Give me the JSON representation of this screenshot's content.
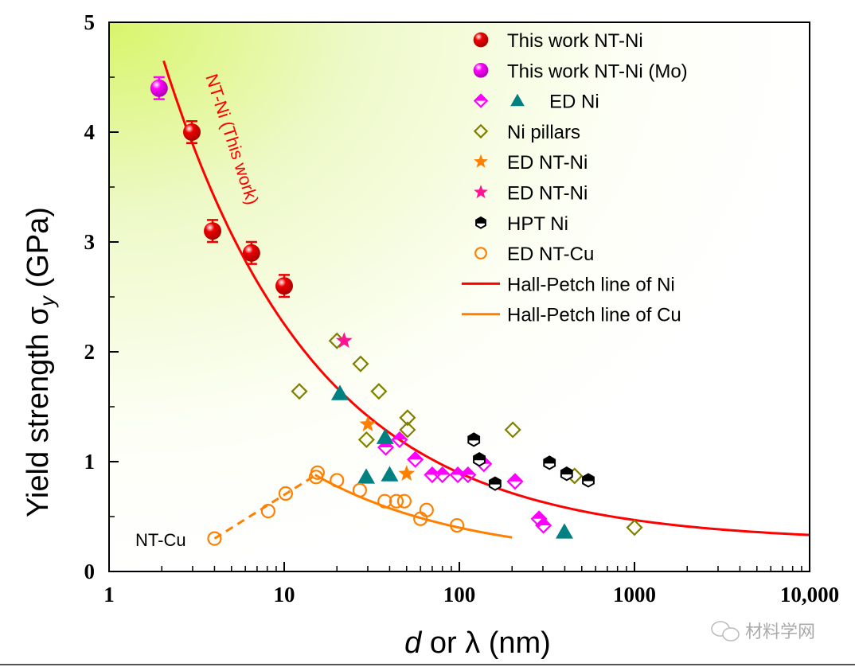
{
  "chart_data": {
    "type": "scatter",
    "xlabel": "d or λ (nm)",
    "xlabel_italic_part": "d",
    "xlabel_rest": " or λ (nm)",
    "ylabel": "Yield strength σy (GPa)",
    "ylabel_main": "Yield strength σ",
    "ylabel_sub": "y",
    "ylabel_unit": " (GPa)",
    "xscale": "log",
    "xlim": [
      1,
      10000
    ],
    "ylim": [
      0,
      5
    ],
    "xticks": [
      {
        "v": 1,
        "label": "1"
      },
      {
        "v": 10,
        "label": "10"
      },
      {
        "v": 100,
        "label": "100"
      },
      {
        "v": 1000,
        "label": "1000"
      },
      {
        "v": 10000,
        "label": "10,000"
      }
    ],
    "yticks": [
      {
        "v": 0,
        "label": "0"
      },
      {
        "v": 1,
        "label": "1"
      },
      {
        "v": 2,
        "label": "2"
      },
      {
        "v": 3,
        "label": "3"
      },
      {
        "v": 4,
        "label": "4"
      },
      {
        "v": 5,
        "label": "5"
      }
    ],
    "grid": false,
    "legend_position": "top-right",
    "background": "yellow-green gradient from top-left",
    "series": [
      {
        "name": "This work NT-Ni",
        "marker": "ball",
        "color": "#ee0000",
        "error": 0.1,
        "points": [
          [
            2.97,
            4.0
          ],
          [
            3.9,
            3.1
          ],
          [
            6.5,
            2.9
          ],
          [
            10,
            2.6
          ]
        ]
      },
      {
        "name": "This work NT-Ni (Mo)",
        "marker": "ball",
        "color": "#ff00ff",
        "error": 0.1,
        "points": [
          [
            1.93,
            4.4
          ]
        ]
      },
      {
        "name": "ED Ni",
        "marker": "halfdiamond",
        "color": "#ff00ff",
        "points": [
          [
            38,
            1.13
          ],
          [
            45.6,
            1.2
          ],
          [
            56,
            1.02
          ],
          [
            70,
            0.88
          ],
          [
            80,
            0.88
          ],
          [
            98,
            0.88
          ],
          [
            112,
            0.88
          ],
          [
            138,
            0.98
          ],
          [
            208,
            0.82
          ],
          [
            285,
            0.48
          ],
          [
            302,
            0.42
          ]
        ]
      },
      {
        "name": "ED Ni",
        "marker": "triangle",
        "color": "#008080",
        "points": [
          [
            20.8,
            1.62
          ],
          [
            37.7,
            1.22
          ],
          [
            29.4,
            0.86
          ],
          [
            40,
            0.88
          ],
          [
            398,
            0.36
          ]
        ]
      },
      {
        "name": "Ni pillars",
        "marker": "diamond",
        "color": "#808000",
        "points": [
          [
            12.2,
            1.64
          ],
          [
            20,
            2.1
          ],
          [
            27.3,
            1.89
          ],
          [
            34.7,
            1.64
          ],
          [
            50.6,
            1.4
          ],
          [
            50.6,
            1.29
          ],
          [
            29.5,
            1.2
          ],
          [
            202,
            1.29
          ],
          [
            455,
            0.87
          ],
          [
            1000,
            0.4
          ]
        ]
      },
      {
        "name": "ED NT-Ni",
        "marker": "star",
        "color": "#ff8000",
        "points": [
          [
            30,
            1.34
          ],
          [
            50,
            0.89
          ]
        ]
      },
      {
        "name": "ED NT-Ni",
        "marker": "star",
        "color": "#ff1493",
        "points": [
          [
            22,
            2.1
          ]
        ]
      },
      {
        "name": "HPT Ni",
        "marker": "hexagon",
        "color": "#000000",
        "points": [
          [
            121,
            1.2
          ],
          [
            130,
            1.02
          ],
          [
            160,
            0.8
          ],
          [
            327,
            0.99
          ],
          [
            410,
            0.89
          ],
          [
            545,
            0.83
          ]
        ]
      },
      {
        "name": "ED NT-Cu",
        "marker": "circle",
        "color": "#ff8000",
        "points": [
          [
            4.0,
            0.3
          ],
          [
            8.1,
            0.55
          ],
          [
            10.2,
            0.71
          ],
          [
            15.2,
            0.86
          ],
          [
            15.5,
            0.9
          ],
          [
            20,
            0.83
          ],
          [
            27,
            0.74
          ],
          [
            37.5,
            0.64
          ],
          [
            43.7,
            0.64
          ],
          [
            48.5,
            0.64
          ],
          [
            65,
            0.56
          ],
          [
            60,
            0.48
          ],
          [
            97,
            0.42
          ]
        ]
      }
    ],
    "lines": [
      {
        "name": "Hall-Petch line of Ni",
        "color": "#ff0000",
        "style": "solid",
        "sigma0": 0.27,
        "k": 6.27,
        "xrange": [
          2.05,
          10000
        ]
      },
      {
        "name": "Hall-Petch line of Cu",
        "color": "#ff8000",
        "style": "solid",
        "sigma0": 0.095,
        "k": 3.04,
        "xrange": [
          15,
          200
        ]
      },
      {
        "name": "",
        "color": "#ff8000",
        "style": "dashed",
        "points": [
          [
            4.0,
            0.3
          ],
          [
            15.2,
            0.88
          ]
        ]
      }
    ],
    "legend": [
      {
        "label": "This work NT-Ni",
        "markers": [
          {
            "marker": "ball",
            "color": "#ee0000"
          }
        ]
      },
      {
        "label": "This work NT-Ni (Mo)",
        "markers": [
          {
            "marker": "ball",
            "color": "#ff00ff"
          }
        ]
      },
      {
        "label": "ED Ni",
        "markers": [
          {
            "marker": "halfdiamond",
            "color": "#ff00ff"
          },
          {
            "marker": "triangle",
            "color": "#008080"
          }
        ]
      },
      {
        "label": "Ni pillars",
        "markers": [
          {
            "marker": "diamond",
            "color": "#808000"
          }
        ]
      },
      {
        "label": "ED NT-Ni",
        "markers": [
          {
            "marker": "star",
            "color": "#ff8000"
          }
        ]
      },
      {
        "label": "ED NT-Ni",
        "markers": [
          {
            "marker": "star",
            "color": "#ff1493"
          }
        ]
      },
      {
        "label": "HPT Ni",
        "markers": [
          {
            "marker": "hexagon",
            "color": "#000000"
          }
        ]
      },
      {
        "label": "ED NT-Cu",
        "markers": [
          {
            "marker": "circle",
            "color": "#ff8000"
          }
        ]
      },
      {
        "label": "Hall-Petch line of Ni",
        "markers": [
          {
            "marker": "line",
            "color": "#ff0000"
          }
        ]
      },
      {
        "label": "Hall-Petch line of Cu",
        "markers": [
          {
            "marker": "line",
            "color": "#ff8000"
          }
        ]
      }
    ],
    "annotations": [
      {
        "text": "NT-Ni (This work)",
        "color": "#ff0000"
      },
      {
        "text": "NT-Cu",
        "color": "#000000"
      }
    ]
  },
  "watermark": {
    "text": "材料学网"
  }
}
